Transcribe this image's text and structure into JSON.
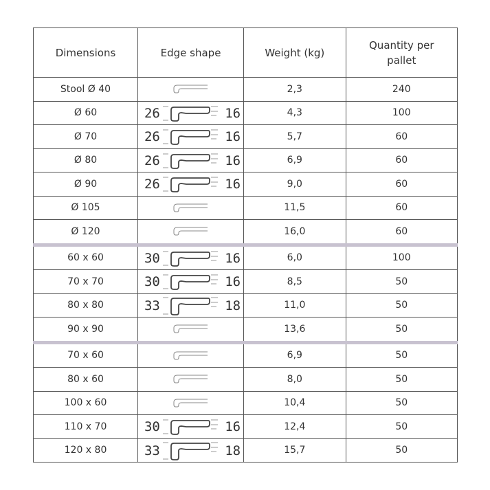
{
  "headers": {
    "dimensions": "Dimensions",
    "edge_shape": "Edge shape",
    "weight": "Weight (kg)",
    "quantity": "Quantity per pallet"
  },
  "rows": [
    {
      "dim": "Stool Ø 40",
      "left": "",
      "right": "",
      "weight": "2,3",
      "qty": "240"
    },
    {
      "dim": "Ø 60",
      "left": "26",
      "right": "16",
      "weight": "4,3",
      "qty": "100"
    },
    {
      "dim": "Ø 70",
      "left": "26",
      "right": "16",
      "weight": "5,7",
      "qty": "60"
    },
    {
      "dim": "Ø 80",
      "left": "26",
      "right": "16",
      "weight": "6,9",
      "qty": "60"
    },
    {
      "dim": "Ø 90",
      "left": "26",
      "right": "16",
      "weight": "9,0",
      "qty": "60"
    },
    {
      "dim": "Ø 105",
      "left": "",
      "right": "",
      "weight": "11,5",
      "qty": "60"
    },
    {
      "dim": "Ø 120",
      "left": "",
      "right": "",
      "weight": "16,0",
      "qty": "60"
    },
    {
      "dim": "60 x 60",
      "left": "30",
      "right": "16",
      "weight": "6,0",
      "qty": "100"
    },
    {
      "dim": "70 x 70",
      "left": "30",
      "right": "16",
      "weight": "8,5",
      "qty": "50"
    },
    {
      "dim": "80 x 80",
      "left": "33",
      "right": "18",
      "weight": "11,0",
      "qty": "50"
    },
    {
      "dim": "90 x 90",
      "left": "",
      "right": "",
      "weight": "13,6",
      "qty": "50"
    },
    {
      "dim": "70 x 60",
      "left": "",
      "right": "",
      "weight": "6,9",
      "qty": "50"
    },
    {
      "dim": "80 x 60",
      "left": "",
      "right": "",
      "weight": "8,0",
      "qty": "50"
    },
    {
      "dim": "100 x 60",
      "left": "",
      "right": "",
      "weight": "10,4",
      "qty": "50"
    },
    {
      "dim": "110 x 70",
      "left": "30",
      "right": "16",
      "weight": "12,4",
      "qty": "50"
    },
    {
      "dim": "120 x 80",
      "left": "33",
      "right": "18",
      "weight": "15,7",
      "qty": "50"
    }
  ],
  "group_separators_before": [
    7,
    11
  ],
  "colors": {
    "separator": "#c8c2d0",
    "border": "#555555"
  }
}
